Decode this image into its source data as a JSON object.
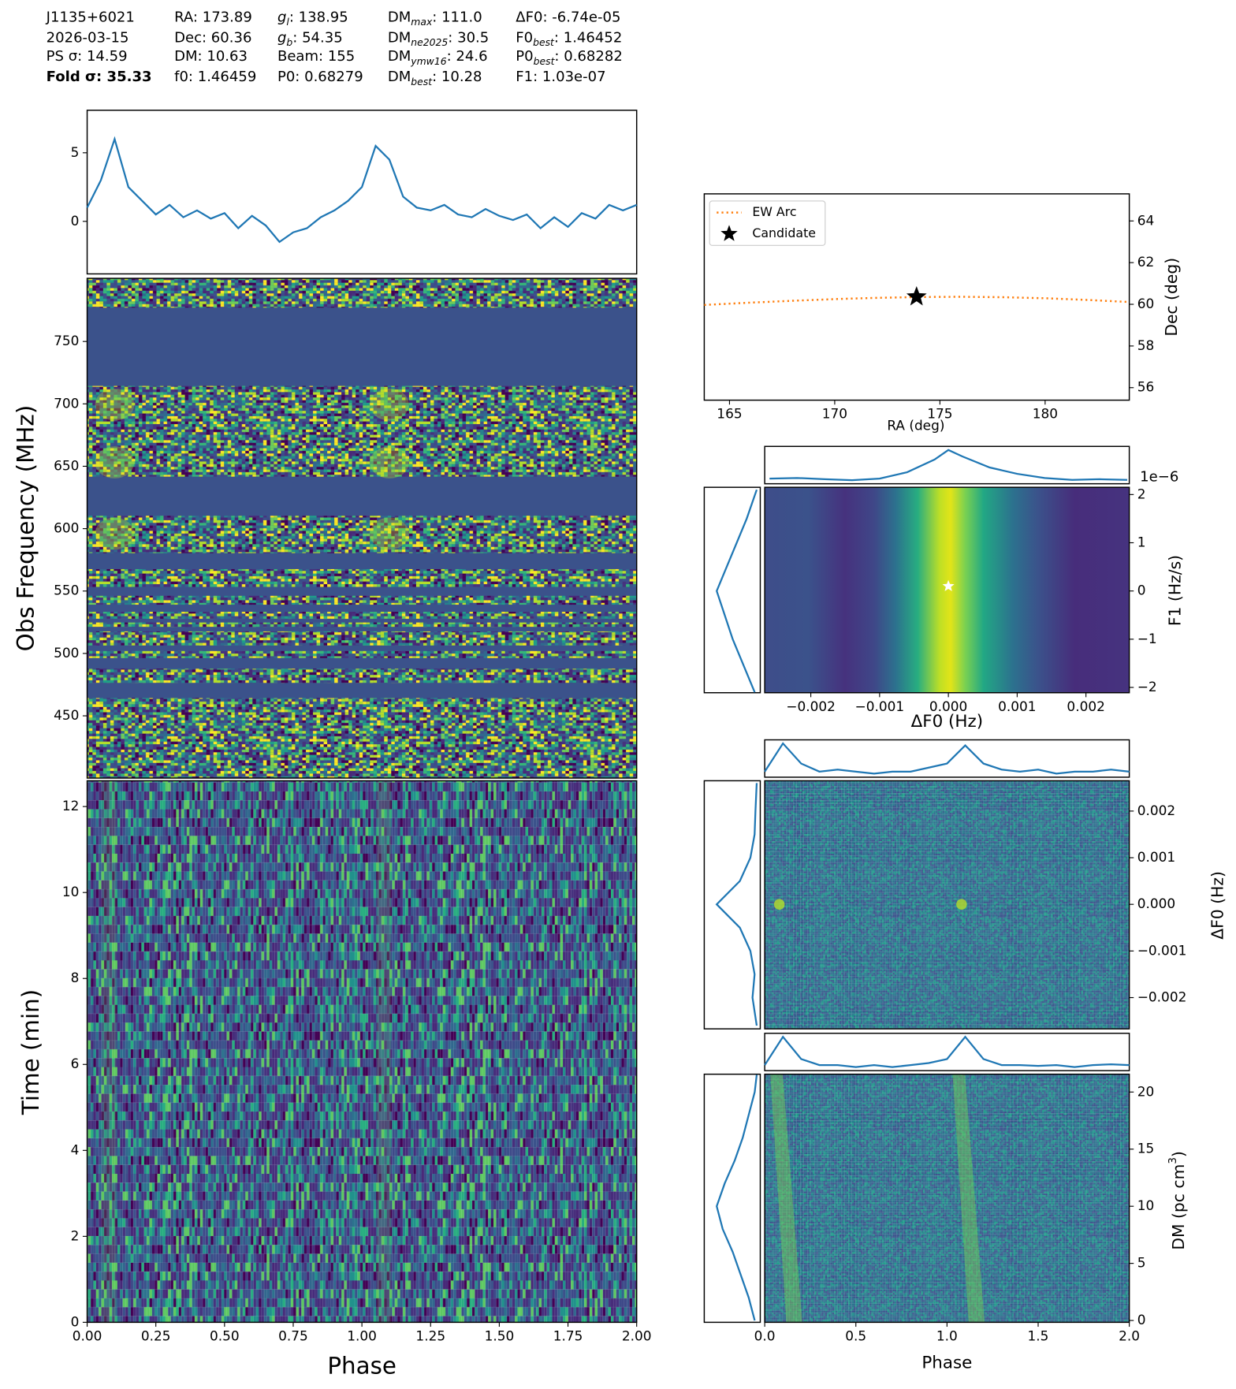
{
  "header": {
    "columns": [
      [
        {
          "text": "J1135+6021"
        },
        {
          "text": "2026-03-15"
        },
        {
          "text": "PS σ: 14.59"
        },
        {
          "text": "Fold σ: 35.33",
          "bold": true
        }
      ],
      [
        {
          "text": "RA: 173.89"
        },
        {
          "text": "Dec: 60.36"
        },
        {
          "text": "DM: 10.63"
        },
        {
          "text": "f0: 1.46459"
        }
      ],
      [
        {
          "text": "g",
          "sub": "l",
          "rest": ": 138.95"
        },
        {
          "text": "g",
          "sub": "b",
          "rest": ": 54.35"
        },
        {
          "text": "Beam: 155"
        },
        {
          "text": "P0: 0.68279"
        }
      ],
      [
        {
          "text": "DM",
          "sub": "max",
          "rest": ": 111.0"
        },
        {
          "text": "DM",
          "sub": "ne2025",
          "rest": ": 30.5"
        },
        {
          "text": "DM",
          "sub": "ymw16",
          "rest": ": 24.6"
        },
        {
          "text": "DM",
          "sub": "best",
          "rest": ": 10.28"
        }
      ],
      [
        {
          "text": "ΔF0: -6.74e-05"
        },
        {
          "text": "F0",
          "sub": "best",
          "rest": ": 1.46452"
        },
        {
          "text": "P0",
          "sub": "best",
          "rest": ": 0.68282"
        },
        {
          "text": "F1: 1.03e-07"
        }
      ]
    ]
  },
  "chart_data": [
    {
      "type": "line",
      "xlim": [
        0,
        2
      ],
      "ylim": [
        -3.83,
        8.1
      ],
      "yticks": [
        0,
        5
      ],
      "x": [
        0,
        0.05,
        0.1,
        0.15,
        0.2,
        0.25,
        0.3,
        0.35,
        0.4,
        0.45,
        0.5,
        0.55,
        0.6,
        0.65,
        0.7,
        0.75,
        0.8,
        0.85,
        0.9,
        0.95,
        1.0,
        1.05,
        1.1,
        1.15,
        1.2,
        1.25,
        1.3,
        1.35,
        1.4,
        1.45,
        1.5,
        1.55,
        1.6,
        1.65,
        1.7,
        1.75,
        1.8,
        1.85,
        1.9,
        1.95,
        2.0
      ],
      "series": [
        {
          "color": "#1f77b4",
          "values": [
            1.0,
            3.0,
            6.0,
            2.5,
            1.5,
            0.5,
            1.2,
            0.3,
            0.8,
            0.2,
            0.6,
            -0.5,
            0.4,
            -0.3,
            -1.5,
            -0.8,
            -0.5,
            0.3,
            0.8,
            1.5,
            2.5,
            5.5,
            4.5,
            1.8,
            1.0,
            0.8,
            1.2,
            0.5,
            0.3,
            0.9,
            0.4,
            0.1,
            0.5,
            -0.5,
            0.3,
            -0.4,
            0.6,
            0.2,
            1.2,
            0.8,
            1.2
          ]
        }
      ]
    },
    {
      "type": "heatmap",
      "colormap": "viridis",
      "xlim": [
        0,
        2
      ],
      "ylim": [
        400.1,
        800.6
      ],
      "yticks": [
        450,
        500,
        550,
        600,
        650,
        700,
        750
      ],
      "y_label": "Obs Frequency (MHz)"
    },
    {
      "type": "heatmap",
      "colormap": "viridis",
      "xlim": [
        0,
        2
      ],
      "xticks": [
        {
          "value": 0,
          "label": "0.00"
        },
        {
          "value": 0.25,
          "label": "0.25"
        },
        {
          "value": 0.5,
          "label": "0.50"
        },
        {
          "value": 0.75,
          "label": "0.75"
        },
        {
          "value": 1,
          "label": "1.00"
        },
        {
          "value": 1.25,
          "label": "1.25"
        },
        {
          "value": 1.5,
          "label": "1.50"
        },
        {
          "value": 1.75,
          "label": "1.75"
        },
        {
          "value": 2,
          "label": "2.00"
        }
      ],
      "ylim": [
        0,
        12.6
      ],
      "yticks": [
        0,
        2,
        4,
        6,
        8,
        10,
        12
      ],
      "x_label": "Phase",
      "y_label": "Time (min)"
    },
    {
      "type": "scatter",
      "xlim": [
        163.8,
        184
      ],
      "ylim": [
        55.4,
        65.3
      ],
      "xticks": [
        165,
        170,
        175,
        180
      ],
      "yticks": [
        56,
        58,
        60,
        62,
        64
      ],
      "x_label": "RA (deg)",
      "y_label": "Dec (deg)",
      "legend": "upper left",
      "series": [
        {
          "name": "EW Arc",
          "color": "#ff7f0e",
          "style": "dotted",
          "x": [
            163.8,
            166,
            168,
            170,
            172,
            174,
            176,
            178,
            180,
            182,
            184
          ],
          "y": [
            59.97,
            60.08,
            60.17,
            60.25,
            60.31,
            60.35,
            60.36,
            60.34,
            60.29,
            60.21,
            60.11
          ]
        },
        {
          "name": "Candidate",
          "color": "#000000",
          "marker": "star",
          "x": [
            173.89
          ],
          "y": [
            60.36
          ]
        }
      ]
    },
    {
      "type": "heatmap",
      "colormap": "viridis",
      "xlim": [
        -0.00267,
        0.00263
      ],
      "ylim": [
        -2.11,
        2.15
      ],
      "xticks": [
        {
          "value": -0.002,
          "label": "−0.002"
        },
        {
          "value": -0.001,
          "label": "−0.001"
        },
        {
          "value": 0,
          "label": "0.000"
        },
        {
          "value": 0.001,
          "label": "0.001"
        },
        {
          "value": 0.002,
          "label": "0.002"
        }
      ],
      "yticks": [
        {
          "value": -2,
          "label": "−2"
        },
        {
          "value": -1,
          "label": "−1"
        },
        0,
        1,
        2
      ],
      "offset_label": "1e−6",
      "x_label": "ΔF0 (Hz)",
      "y_label": "F1 (Hz/s)",
      "best": {
        "x": [
          0
        ],
        "y": [
          0.1
        ]
      },
      "top_profile": {
        "x": [
          -0.0026,
          -0.0022,
          -0.0018,
          -0.0014,
          -0.001,
          -0.0006,
          -0.0002,
          0,
          0.0002,
          0.0006,
          0.001,
          0.0014,
          0.0018,
          0.0022,
          0.0026
        ],
        "values": [
          0.1,
          0.12,
          0.08,
          0.05,
          0.1,
          0.3,
          0.7,
          1.0,
          0.8,
          0.45,
          0.25,
          0.12,
          0.06,
          0.08,
          0.06
        ]
      },
      "side_profile": {
        "y": [
          -2.1,
          -1.5,
          -1,
          -0.5,
          0,
          0.5,
          1,
          1.5,
          2.1
        ],
        "values": [
          0.05,
          0.35,
          0.6,
          0.8,
          1.0,
          0.75,
          0.5,
          0.25,
          0.0
        ]
      }
    },
    {
      "type": "heatmap",
      "colormap": "viridis",
      "xlim": [
        0,
        2
      ],
      "ylim": [
        -0.00267,
        0.00265
      ],
      "yticks": [
        {
          "value": -0.002,
          "label": "−0.002"
        },
        {
          "value": -0.001,
          "label": "−0.001"
        },
        {
          "value": 0,
          "label": "0.000"
        },
        {
          "value": 0.001,
          "label": "0.001"
        },
        {
          "value": 0.002,
          "label": "0.002"
        }
      ],
      "y_label": "ΔF0 (Hz)",
      "top_profile": {
        "x": [
          0,
          0.1,
          0.2,
          0.3,
          0.4,
          0.5,
          0.6,
          0.7,
          0.8,
          0.9,
          1.0,
          1.1,
          1.2,
          1.3,
          1.4,
          1.5,
          1.6,
          1.7,
          1.8,
          1.9,
          2.0
        ],
        "values": [
          0.3,
          1.0,
          0.5,
          0.3,
          0.35,
          0.3,
          0.25,
          0.3,
          0.3,
          0.4,
          0.5,
          0.95,
          0.5,
          0.35,
          0.3,
          0.35,
          0.25,
          0.3,
          0.3,
          0.35,
          0.3
        ]
      },
      "side_profile": {
        "y": [
          -0.0026,
          -0.002,
          -0.0015,
          -0.001,
          -0.0005,
          0,
          0.0005,
          0.001,
          0.0015,
          0.002,
          0.0026
        ],
        "values": [
          0.05,
          0.15,
          0.1,
          0.2,
          0.45,
          1.0,
          0.45,
          0.2,
          0.1,
          0.08,
          0.05
        ]
      }
    },
    {
      "type": "heatmap",
      "colormap": "viridis",
      "xlim": [
        0,
        2
      ],
      "ylim": [
        -0.16,
        21.56
      ],
      "xticks": [
        {
          "value": 0,
          "label": "0.0"
        },
        {
          "value": 0.5,
          "label": "0.5"
        },
        {
          "value": 1,
          "label": "1.0"
        },
        {
          "value": 1.5,
          "label": "1.5"
        },
        {
          "value": 2,
          "label": "2.0"
        }
      ],
      "yticks": [
        0,
        5,
        10,
        15,
        20
      ],
      "x_label": "Phase",
      "y_label": {
        "text": "DM (pc cm",
        "sup": "3",
        "rest": ")"
      },
      "top_profile": {
        "x": [
          0,
          0.1,
          0.2,
          0.3,
          0.4,
          0.5,
          0.6,
          0.7,
          0.8,
          0.9,
          1.0,
          1.1,
          1.2,
          1.3,
          1.4,
          1.5,
          1.6,
          1.7,
          1.8,
          1.9,
          2.0
        ],
        "values": [
          0.3,
          1.0,
          0.45,
          0.3,
          0.3,
          0.25,
          0.3,
          0.25,
          0.3,
          0.35,
          0.45,
          1.0,
          0.45,
          0.3,
          0.3,
          0.28,
          0.3,
          0.25,
          0.3,
          0.32,
          0.3
        ]
      },
      "side_profile": {
        "y": [
          0,
          2,
          4,
          6,
          8,
          10,
          12,
          14,
          16,
          18,
          20,
          21.5
        ],
        "values": [
          0.05,
          0.2,
          0.4,
          0.6,
          0.85,
          1.0,
          0.8,
          0.55,
          0.35,
          0.2,
          0.05,
          0.0
        ]
      }
    }
  ]
}
